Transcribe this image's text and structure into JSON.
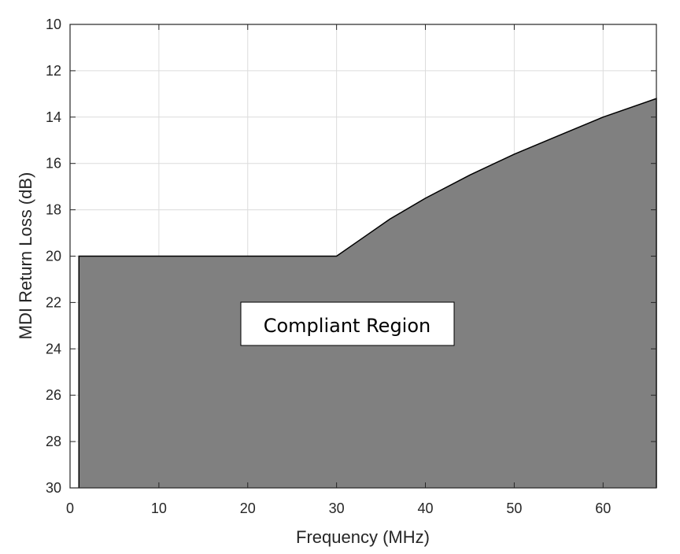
{
  "chart_data": {
    "type": "area",
    "title": "",
    "xlabel": "Frequency (MHz)",
    "ylabel": "MDI Return Loss (dB)",
    "xlim": [
      0,
      66
    ],
    "ylim": [
      30,
      10
    ],
    "y_reversed": true,
    "xticks": [
      0,
      10,
      20,
      30,
      40,
      50,
      60
    ],
    "yticks": [
      10,
      12,
      14,
      16,
      18,
      20,
      22,
      24,
      26,
      28,
      30
    ],
    "grid": true,
    "series": [
      {
        "x": [
          1,
          5,
          10,
          15,
          20,
          25,
          30,
          33,
          36,
          40,
          45,
          50,
          55,
          60,
          66
        ],
        "y": [
          20,
          20,
          20,
          20,
          20,
          20,
          20,
          19.2,
          18.4,
          17.5,
          16.5,
          15.6,
          14.8,
          14.0,
          13.2
        ]
      }
    ],
    "fill_to": 30,
    "fill_color": "#808080",
    "line_color": "#000000",
    "annotations": [
      {
        "text": "Compliant Region",
        "x": 33,
        "y": 23
      }
    ]
  }
}
